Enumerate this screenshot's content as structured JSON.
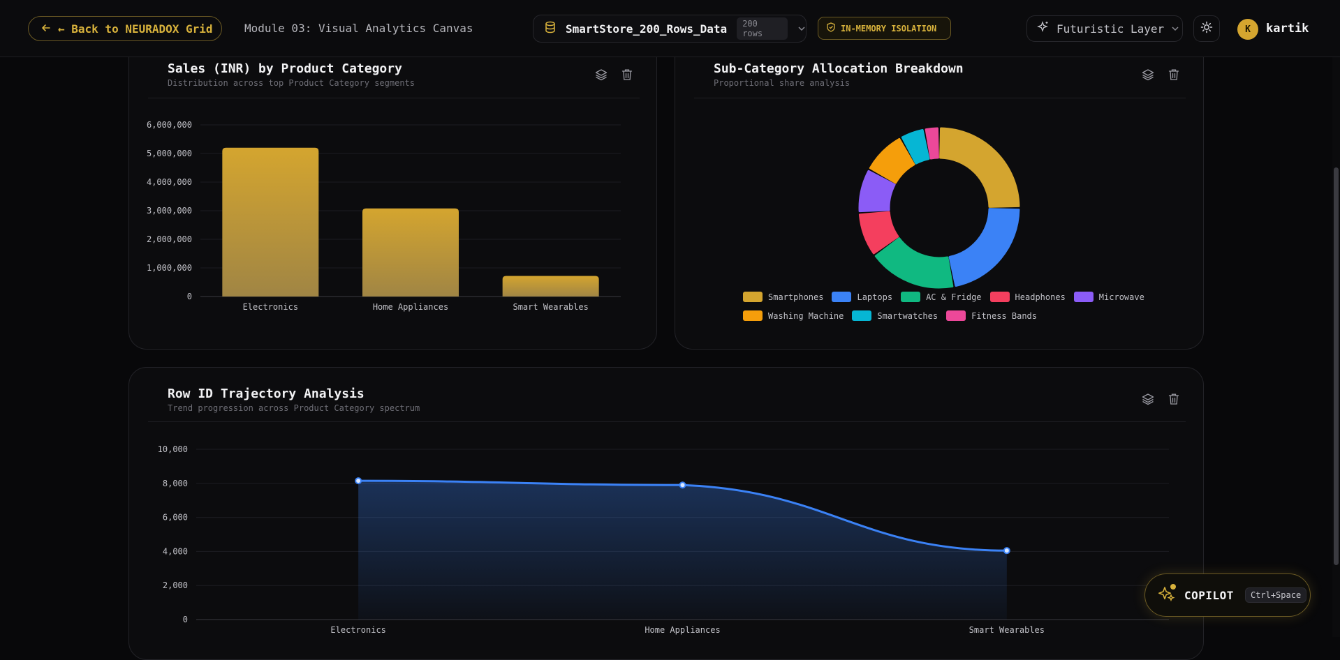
{
  "topbar": {
    "back_label": "← Back to NEURADOX Grid",
    "module_title": "Module 03: Visual Analytics Canvas",
    "dataset_name": "SmartStore_200_Rows_Data",
    "dataset_rows": "200 rows",
    "isolation_badge": "IN-MEMORY ISOLATION",
    "layer_label": "Futuristic Layer",
    "user_initial": "K",
    "user_name": "kartik"
  },
  "colors": {
    "accent": "#d4a52f",
    "blue": "#3b82f6",
    "background": "#08080a",
    "card": "#0c0c0e"
  },
  "cards": {
    "bar": {
      "title": "Sales (INR) by Product Category",
      "subtitle": "Distribution across top Product Category segments"
    },
    "donut": {
      "title": "Sub-Category Allocation Breakdown",
      "subtitle": "Proportional share analysis"
    },
    "line": {
      "title": "Row ID Trajectory Analysis",
      "subtitle": "Trend progression across Product Category spectrum"
    }
  },
  "copilot": {
    "label": "COPILOT",
    "shortcut": "Ctrl+Space"
  },
  "chart_data": [
    {
      "type": "bar",
      "categories": [
        "Electronics",
        "Home Appliances",
        "Smart Wearables"
      ],
      "values": [
        5200000,
        3080000,
        720000
      ],
      "ylim": [
        0,
        6000000
      ],
      "yticks": [
        0,
        1000000,
        2000000,
        3000000,
        4000000,
        5000000,
        6000000
      ],
      "ytick_labels": [
        "0",
        "1,000,000",
        "2,000,000",
        "3,000,000",
        "4,000,000",
        "5,000,000",
        "6,000,000"
      ],
      "color": "#d4a52f",
      "grid": true
    },
    {
      "type": "pie",
      "labels": [
        "Smartphones",
        "Laptops",
        "AC & Fridge",
        "Headphones",
        "Microwave",
        "Washing Machine",
        "Smartwatches",
        "Fitness Bands"
      ],
      "values": [
        25,
        22,
        18,
        9,
        9,
        9,
        5,
        3
      ],
      "colors": [
        "#d4a52f",
        "#3b82f6",
        "#10b981",
        "#f43f5e",
        "#8b5cf6",
        "#f59e0b",
        "#06b6d4",
        "#ec4899"
      ],
      "legend_position": "bottom"
    },
    {
      "type": "area",
      "categories": [
        "Electronics",
        "Home Appliances",
        "Smart Wearables"
      ],
      "values": [
        8150,
        7900,
        4050
      ],
      "ylim": [
        0,
        10000
      ],
      "yticks": [
        0,
        2000,
        4000,
        6000,
        8000,
        10000
      ],
      "ytick_labels": [
        "0",
        "2,000",
        "4,000",
        "6,000",
        "8,000",
        "10,000"
      ],
      "color": "#3b82f6",
      "grid": true
    }
  ]
}
